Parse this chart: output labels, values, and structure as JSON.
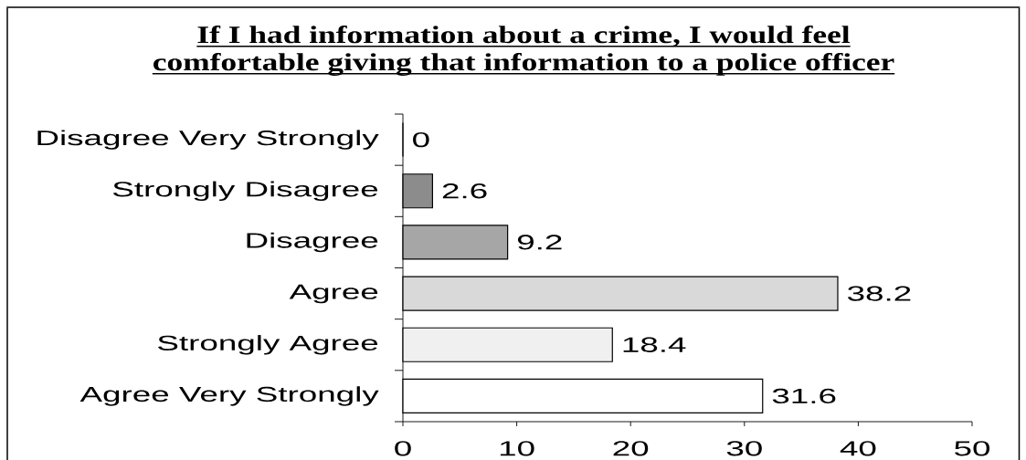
{
  "chart_data": {
    "type": "bar",
    "orientation": "horizontal",
    "title": "If I had information about a crime, I would feel comfortable giving that information to a police officer",
    "categories": [
      "Disagree Very Strongly",
      "Strongly Disagree",
      "Disagree",
      "Agree",
      "Strongly Agree",
      "Agree Very Strongly"
    ],
    "values": [
      0,
      2.6,
      9.2,
      38.2,
      18.4,
      31.6
    ],
    "colors": [
      "#ffffff",
      "#8c8c8c",
      "#a6a6a6",
      "#d9d9d9",
      "#f0f0f0",
      "#ffffff"
    ],
    "xlim": [
      0,
      50
    ],
    "xticks": [
      0,
      10,
      20,
      30,
      40,
      50
    ],
    "data_labels": true
  }
}
